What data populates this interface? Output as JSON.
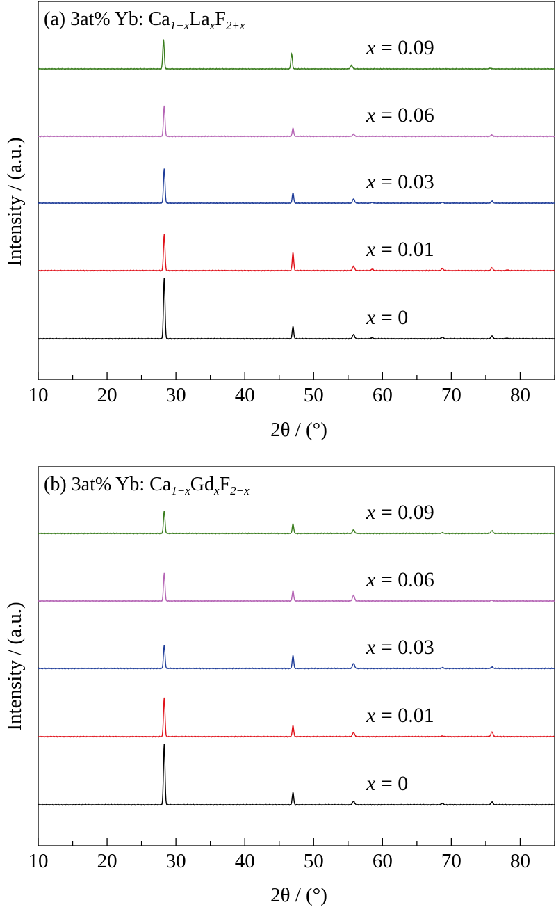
{
  "chart_data": [
    {
      "type": "line",
      "panel_label": "(a)",
      "title": "(a) 3at% Yb: Ca1−xLaxF2+x",
      "title_parts": {
        "prefix": "(a) 3at% Yb: Ca",
        "sub1": "1−x",
        "el2": "La",
        "sub2": "x",
        "el3": "F",
        "sub3": "2+x"
      },
      "xlabel": "2θ / (°)",
      "ylabel": "Intensity / (a.u.)",
      "xlim": [
        10,
        85
      ],
      "xticks": [
        10,
        20,
        30,
        40,
        50,
        60,
        70,
        80
      ],
      "series": [
        {
          "name": "x = 0",
          "var": "x",
          "val": "0",
          "color": "#000000",
          "peaks": [
            [
              28.3,
              88
            ],
            [
              47.0,
              18
            ],
            [
              55.8,
              6
            ],
            [
              58.5,
              1.5
            ],
            [
              68.7,
              2
            ],
            [
              75.9,
              4
            ],
            [
              78.1,
              1
            ]
          ]
        },
        {
          "name": "x = 0.01",
          "var": "x",
          "val": "0.01",
          "color": "#e0121b",
          "peaks": [
            [
              28.3,
              52
            ],
            [
              47.0,
              26
            ],
            [
              55.8,
              6
            ],
            [
              58.5,
              2
            ],
            [
              68.7,
              3
            ],
            [
              75.9,
              4
            ],
            [
              78.1,
              1
            ]
          ]
        },
        {
          "name": "x = 0.03",
          "var": "x",
          "val": "0.03",
          "color": "#1f3d99",
          "peaks": [
            [
              28.3,
              50
            ],
            [
              47.0,
              15
            ],
            [
              55.8,
              6
            ],
            [
              58.5,
              1
            ],
            [
              68.7,
              1
            ],
            [
              75.9,
              3
            ]
          ]
        },
        {
          "name": "x = 0.06",
          "var": "x",
          "val": "0.06",
          "color": "#b565b5",
          "peaks": [
            [
              28.3,
              44
            ],
            [
              47.0,
              12
            ],
            [
              55.8,
              3
            ],
            [
              75.9,
              2
            ]
          ]
        },
        {
          "name": "x = 0.09",
          "var": "x",
          "val": "0.09",
          "color": "#3a7d1e",
          "peaks": [
            [
              28.2,
              42
            ],
            [
              46.8,
              22
            ],
            [
              55.5,
              5
            ],
            [
              75.7,
              1
            ]
          ]
        }
      ]
    },
    {
      "type": "line",
      "panel_label": "(b)",
      "title": "(b) 3at% Yb: Ca1−xGdxF2+x",
      "title_parts": {
        "prefix": "(b) 3at% Yb: Ca",
        "sub1": "1−x",
        "el2": "Gd",
        "sub2": "x",
        "el3": "F",
        "sub3": "2+x"
      },
      "xlabel": "2θ / (°)",
      "ylabel": "Intensity / (a.u.)",
      "xlim": [
        10,
        85
      ],
      "xticks": [
        10,
        20,
        30,
        40,
        50,
        60,
        70,
        80
      ],
      "series": [
        {
          "name": "x = 0",
          "var": "x",
          "val": "0",
          "color": "#000000",
          "peaks": [
            [
              28.3,
              88
            ],
            [
              47.0,
              18
            ],
            [
              55.8,
              5
            ],
            [
              68.7,
              2
            ],
            [
              75.9,
              4
            ]
          ]
        },
        {
          "name": "x = 0.01",
          "var": "x",
          "val": "0.01",
          "color": "#e0121b",
          "peaks": [
            [
              28.3,
              56
            ],
            [
              47.0,
              16
            ],
            [
              55.8,
              6
            ],
            [
              68.7,
              1
            ],
            [
              75.9,
              7
            ]
          ]
        },
        {
          "name": "x = 0.03",
          "var": "x",
          "val": "0.03",
          "color": "#1f3d99",
          "peaks": [
            [
              28.3,
              34
            ],
            [
              47.0,
              19
            ],
            [
              55.8,
              7
            ],
            [
              68.7,
              1
            ],
            [
              75.9,
              2
            ]
          ]
        },
        {
          "name": "x = 0.06",
          "var": "x",
          "val": "0.06",
          "color": "#b565b5",
          "peaks": [
            [
              28.3,
              40
            ],
            [
              47.0,
              15
            ],
            [
              55.8,
              8
            ],
            [
              75.9,
              1
            ]
          ]
        },
        {
          "name": "x = 0.09",
          "var": "x",
          "val": "0.09",
          "color": "#3a7d1e",
          "peaks": [
            [
              28.3,
              33
            ],
            [
              47.0,
              14
            ],
            [
              55.8,
              5
            ],
            [
              68.7,
              1
            ],
            [
              75.9,
              4
            ]
          ]
        }
      ]
    }
  ]
}
